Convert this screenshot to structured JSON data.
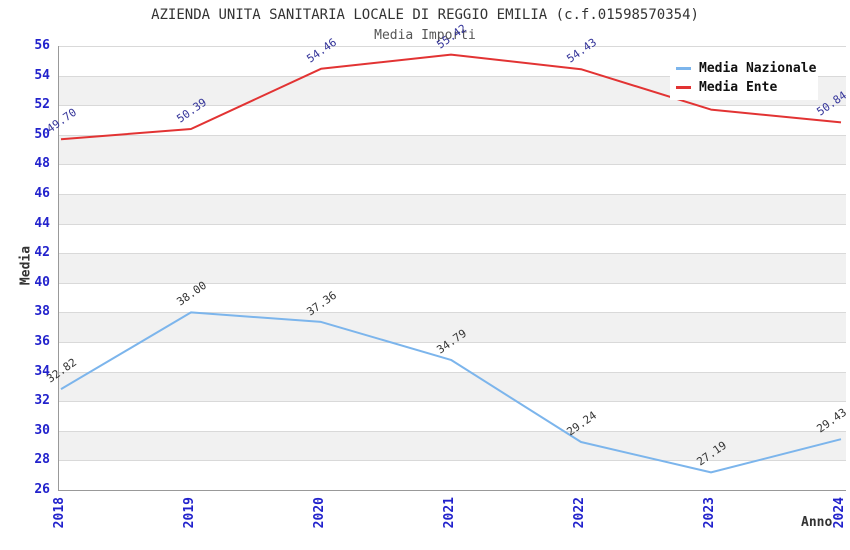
{
  "chart_data": {
    "type": "line",
    "title": "AZIENDA UNITA SANITARIA LOCALE DI REGGIO EMILIA (c.f.01598570354)",
    "subtitle": "Media Importi",
    "xlabel": "Anno",
    "ylabel": "Media",
    "categories": [
      "2018",
      "2019",
      "2020",
      "2021",
      "2022",
      "2023",
      "2024"
    ],
    "ylim": [
      26,
      56
    ],
    "y_ticks": [
      26,
      28,
      30,
      32,
      34,
      36,
      38,
      40,
      42,
      44,
      46,
      48,
      50,
      52,
      54,
      56
    ],
    "grid": "horizontal gridlines every 2 units with alternating white/gray bands",
    "legend_position": "top-right inside plot",
    "series": [
      {
        "name": "Media Nazionale",
        "color": "#7cb5ec",
        "label_color": "#333333",
        "values": [
          32.82,
          38.0,
          37.36,
          34.79,
          29.24,
          27.19,
          29.43
        ],
        "point_labels": [
          "32.82",
          "38.00",
          "37.36",
          "34.79",
          "29.24",
          "27.19",
          "29.43"
        ]
      },
      {
        "name": "Media Ente",
        "color": "#e23333",
        "label_color": "#333399",
        "values": [
          49.7,
          50.39,
          54.46,
          55.42,
          54.43,
          51.7,
          50.84
        ],
        "point_labels": [
          "49.70",
          "50.39",
          "54.46",
          "55.42",
          "54.43",
          "",
          "50.84"
        ],
        "note": "2023 point label is hidden behind the legend box; value estimated from line position"
      }
    ]
  },
  "colors": {
    "axis_tick_text": "#2222cc",
    "grid_line": "#d9d9d9",
    "band_fill": "#f1f1f1",
    "axis_line": "#999999",
    "title_text": "#333333",
    "subtitle_text": "#555555",
    "legend_text": "#111111",
    "series_blue": "#7cb5ec",
    "series_red": "#e23333"
  }
}
